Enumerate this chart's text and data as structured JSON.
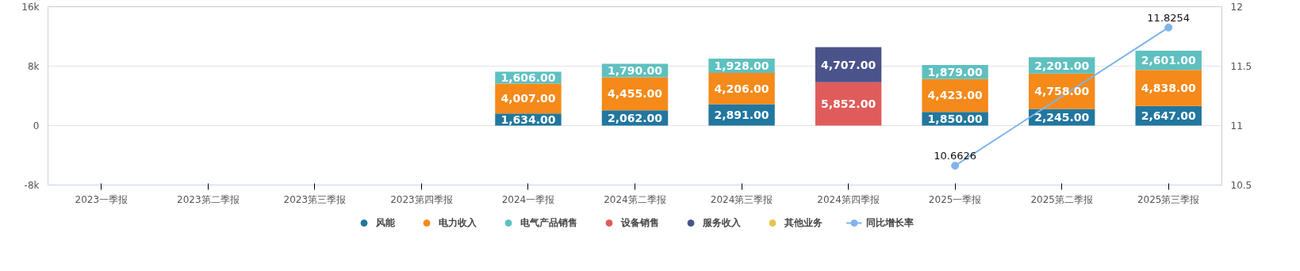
{
  "chart_data": {
    "type": "bar",
    "stacked": true,
    "categories": [
      "2023一季报",
      "2023第二季报",
      "2023第三季报",
      "2023第四季报",
      "2024一季报",
      "2024第二季报",
      "2024第三季报",
      "2024第四季报",
      "2025一季报",
      "2025第二季报",
      "2025第三季报"
    ],
    "series": [
      {
        "name": "风能",
        "color": "#22779f",
        "values": [
          null,
          null,
          null,
          null,
          1634,
          2062,
          2891,
          null,
          1850,
          2245,
          2647
        ],
        "value_labels": [
          null,
          null,
          null,
          null,
          "1,634.00",
          "2,062.00",
          "2,891.00",
          null,
          "1,850.00",
          "2,245.00",
          "2,647.00"
        ]
      },
      {
        "name": "电力收入",
        "color": "#f58a1a",
        "values": [
          null,
          null,
          null,
          null,
          4007,
          4455,
          4206,
          null,
          4423,
          4758,
          4838
        ],
        "value_labels": [
          null,
          null,
          null,
          null,
          "4,007.00",
          "4,455.00",
          "4,206.00",
          null,
          "4,423.00",
          "4,758.00",
          "4,838.00"
        ]
      },
      {
        "name": "电气产品销售",
        "color": "#5fc0c0",
        "values": [
          null,
          null,
          null,
          null,
          1606,
          1790,
          1928,
          null,
          1879,
          2201,
          2601
        ],
        "value_labels": [
          null,
          null,
          null,
          null,
          "1,606.00",
          "1,790.00",
          "1,928.00",
          null,
          "1,879.00",
          "2,201.00",
          "2,601.00"
        ]
      },
      {
        "name": "设备销售",
        "color": "#e05c5c",
        "values": [
          null,
          null,
          null,
          null,
          null,
          null,
          null,
          5852,
          null,
          null,
          null
        ],
        "value_labels": [
          null,
          null,
          null,
          null,
          null,
          null,
          null,
          "5,852.00",
          null,
          null,
          null
        ]
      },
      {
        "name": "服务收入",
        "color": "#4a548b",
        "values": [
          null,
          null,
          null,
          null,
          null,
          null,
          null,
          4707,
          null,
          null,
          null
        ],
        "value_labels": [
          null,
          null,
          null,
          null,
          null,
          null,
          null,
          "4,707.00",
          null,
          null,
          null
        ]
      },
      {
        "name": "其他业务",
        "color": "#e8c34a",
        "values": [
          null,
          null,
          null,
          null,
          null,
          null,
          null,
          null,
          null,
          null,
          null
        ]
      },
      {
        "name": "同比增长率",
        "type": "line",
        "axis": "y2",
        "color": "#7eb5ea",
        "marker": "circle",
        "values": [
          null,
          null,
          null,
          null,
          null,
          null,
          null,
          null,
          10.6626,
          null,
          11.8254
        ],
        "value_labels": [
          null,
          null,
          null,
          null,
          null,
          null,
          null,
          null,
          "10.6626",
          null,
          "11.8254"
        ]
      }
    ],
    "ylim": [
      -8000,
      16000
    ],
    "yticks": [
      {
        "value": -8000,
        "label": "-8k"
      },
      0,
      {
        "value": 8000,
        "label": "8k"
      },
      {
        "value": 16000,
        "label": "16k"
      }
    ],
    "y2lim": [
      10.5,
      12
    ],
    "y2ticks": [
      10.5,
      11,
      11.5,
      12
    ],
    "grid": "y",
    "legend": "bottom"
  }
}
